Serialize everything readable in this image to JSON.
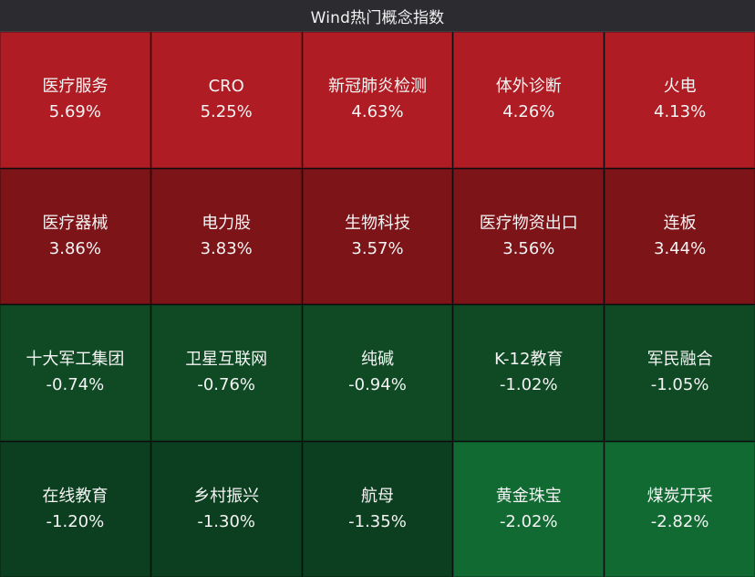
{
  "header": {
    "title": "Wind热门概念指数"
  },
  "colors": {
    "up_strong": "#b01c24",
    "up_mid": "#7c1418",
    "down_mid": "#0f4a25",
    "down_dark": "#0c3f20",
    "down_bright": "#126a33"
  },
  "tiles": [
    {
      "name": "医疗服务",
      "pct": "5.69%",
      "color": "#b01c24"
    },
    {
      "name": "CRO",
      "pct": "5.25%",
      "color": "#b01c24"
    },
    {
      "name": "新冠肺炎检测",
      "pct": "4.63%",
      "color": "#b01c24"
    },
    {
      "name": "体外诊断",
      "pct": "4.26%",
      "color": "#b01c24"
    },
    {
      "name": "火电",
      "pct": "4.13%",
      "color": "#b01c24"
    },
    {
      "name": "医疗器械",
      "pct": "3.86%",
      "color": "#7c1418"
    },
    {
      "name": "电力股",
      "pct": "3.83%",
      "color": "#7c1418"
    },
    {
      "name": "生物科技",
      "pct": "3.57%",
      "color": "#7c1418"
    },
    {
      "name": "医疗物资出口",
      "pct": "3.56%",
      "color": "#7c1418"
    },
    {
      "name": "连板",
      "pct": "3.44%",
      "color": "#7c1418"
    },
    {
      "name": "十大军工集团",
      "pct": "-0.74%",
      "color": "#0f4a25"
    },
    {
      "name": "卫星互联网",
      "pct": "-0.76%",
      "color": "#0f4a25"
    },
    {
      "name": "纯碱",
      "pct": "-0.94%",
      "color": "#0f4a25"
    },
    {
      "name": "K-12教育",
      "pct": "-1.02%",
      "color": "#0f4a25"
    },
    {
      "name": "军民融合",
      "pct": "-1.05%",
      "color": "#0f4a25"
    },
    {
      "name": "在线教育",
      "pct": "-1.20%",
      "color": "#0c3f20"
    },
    {
      "name": "乡村振兴",
      "pct": "-1.30%",
      "color": "#0c3f20"
    },
    {
      "name": "航母",
      "pct": "-1.35%",
      "color": "#0c3f20"
    },
    {
      "name": "黄金珠宝",
      "pct": "-2.02%",
      "color": "#126a33"
    },
    {
      "name": "煤炭开采",
      "pct": "-2.82%",
      "color": "#126a33"
    }
  ]
}
